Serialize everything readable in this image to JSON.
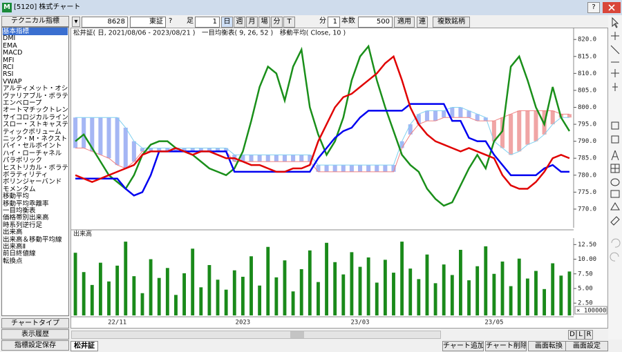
{
  "window": {
    "title": "[5120] 株式チャート",
    "help": "?"
  },
  "left_panel": {
    "button": "テクニカル指標",
    "items": [
      "基本指標",
      "DMI",
      "EMA",
      "MACD",
      "MFI",
      "RCI",
      "RSI",
      "VWAP",
      "アルティメット・オシレー",
      "ヴァリアブル・ボラティ",
      "エンベロープ",
      "オートマチックトレンドラ",
      "サイコロジカルライン",
      "スロー・ストキャスティ",
      "ティックボリューム",
      "ニック・M・ネクスト・ム",
      "バイ・セルポイント",
      "ハイ・ローチャネル",
      "パラボリック",
      "ヒストリカル・ボラティリ",
      "ボラティリティ",
      "ボリンジャーバンド",
      "モメンタム",
      "移動平均",
      "移動平均乖離率",
      "一目均衡表",
      "価格帯別出来高",
      "時系列逆行足",
      "出来高",
      "出来高＆移動平均線",
      "出来高Ⅱ",
      "前日終値線",
      "転換点"
    ],
    "bottom_buttons": [
      "チャートタイプ",
      "表示履歴",
      "指標設定保存"
    ]
  },
  "toolbar": {
    "code": "8628",
    "market": "東証",
    "help": "?",
    "bar_label": "足",
    "bar_count": "1",
    "periods": [
      "日",
      "週",
      "月",
      "場",
      "分",
      "T"
    ],
    "minute_label": "分",
    "minute_value": "1",
    "count_label": "本数",
    "count_value": "500",
    "apply": "適用",
    "link": "連",
    "multi": "複数銘柄"
  },
  "chart_data": [
    {
      "type": "line",
      "title": "松井証( 日, 2021/08/06 - 2023/08/21 )　一目均衡表( 9, 26, 52 )　移動平均( Close, 10 )",
      "ylim": [
        764.5,
        823.5
      ],
      "yticks": [
        {
          "value": 770,
          "label": "770.0"
        },
        {
          "value": 775,
          "label": "775.0"
        },
        {
          "value": 780,
          "label": "780.0"
        },
        {
          "value": 785,
          "label": "785.0"
        },
        {
          "value": 790,
          "label": "790.0"
        },
        {
          "value": 795,
          "label": "795.0"
        },
        {
          "value": 800,
          "label": "800.0"
        },
        {
          "value": 805,
          "label": "805.0"
        },
        {
          "value": 810,
          "label": "810.0"
        },
        {
          "value": 815,
          "label": "815.0"
        },
        {
          "value": 820,
          "label": "820.0"
        }
      ],
      "cloud": {
        "colors": [
          "#3a5ee8",
          "#e03a3a"
        ]
      },
      "series": [
        {
          "color": "#7fd0f0",
          "width": 1,
          "values": [
            797,
            797,
            797,
            797,
            797,
            797,
            794,
            790,
            788,
            788,
            788,
            788,
            788,
            788,
            788,
            788,
            788,
            788,
            788,
            786,
            786,
            786,
            786,
            786,
            786,
            786,
            786,
            786,
            786,
            783,
            783,
            783,
            783,
            783,
            783,
            783,
            783,
            783,
            783,
            790,
            795,
            798,
            799,
            799,
            799,
            800,
            800,
            799,
            798,
            797,
            790,
            788,
            786,
            787,
            789,
            790,
            792,
            795,
            797,
            797
          ]
        },
        {
          "color": "#f08080",
          "width": 1,
          "values": [
            788,
            788,
            787,
            786,
            785,
            783,
            782,
            784,
            787,
            787,
            787,
            787,
            787,
            787,
            787,
            787,
            787,
            787,
            787,
            784,
            784,
            784,
            784,
            784,
            784,
            784,
            784,
            784,
            784,
            781,
            781,
            781,
            781,
            781,
            781,
            781,
            781,
            781,
            781,
            788,
            792,
            795,
            796,
            796,
            797,
            797,
            797,
            797,
            796,
            796,
            796,
            797,
            798,
            799,
            799,
            799,
            799,
            799,
            798,
            798
          ]
        },
        {
          "color": "#1a8f1a",
          "width": 2.5,
          "values": [
            790,
            792,
            788,
            784,
            780,
            778,
            776,
            780,
            786,
            789,
            790,
            790,
            788,
            787,
            786,
            784,
            782,
            781,
            780,
            782,
            787,
            796,
            806,
            812,
            810,
            802,
            812,
            817,
            800,
            792,
            786,
            790,
            797,
            808,
            815,
            818,
            808,
            800,
            793,
            786,
            783,
            781,
            776,
            773,
            771,
            772,
            777,
            782,
            786,
            782,
            790,
            793,
            812,
            815,
            808,
            800,
            795,
            806,
            797,
            793
          ]
        },
        {
          "color": "#0000f0",
          "width": 2.5,
          "values": [
            779,
            779,
            779,
            779,
            779,
            779,
            776,
            774,
            775,
            780,
            787,
            787,
            787,
            787,
            787,
            787,
            787,
            787,
            787,
            781,
            781,
            781,
            781,
            781,
            781,
            781,
            781,
            781,
            781,
            785,
            788,
            791,
            793,
            794,
            797,
            799,
            799,
            799,
            799,
            799,
            801,
            801,
            801,
            801,
            801,
            796,
            796,
            791,
            790,
            790,
            786,
            783,
            780,
            780,
            780,
            780,
            782,
            783,
            781,
            781
          ]
        },
        {
          "color": "#e00000",
          "width": 2.5,
          "values": [
            780,
            779,
            778,
            779,
            780,
            781,
            782,
            783,
            786,
            787,
            787,
            787,
            788,
            787,
            786,
            787,
            787,
            786,
            785,
            785,
            784,
            783,
            783,
            782,
            781,
            781,
            782,
            782,
            783,
            790,
            795,
            800,
            803,
            804,
            806,
            808,
            810,
            813,
            815,
            808,
            800,
            795,
            792,
            790,
            789,
            788,
            787,
            788,
            787,
            786,
            785,
            780,
            777,
            776,
            776,
            778,
            781,
            785,
            786,
            785
          ]
        }
      ]
    },
    {
      "type": "bar",
      "title": "出来高",
      "unit_label": "× 100000",
      "color": "#1a8a1a",
      "categories": [
        null,
        null,
        null,
        null,
        null,
        "22/11",
        null,
        null,
        null,
        null,
        null,
        null,
        null,
        null,
        null,
        null,
        null,
        null,
        null,
        null,
        "2023",
        null,
        null,
        null,
        null,
        null,
        null,
        null,
        null,
        null,
        null,
        null,
        null,
        null,
        "23/03",
        null,
        null,
        null,
        null,
        null,
        null,
        null,
        null,
        null,
        null,
        null,
        null,
        null,
        null,
        null,
        "23/05",
        null,
        null,
        null,
        null,
        null,
        null,
        null,
        null,
        null
      ],
      "values": [
        11.1,
        7.8,
        5.6,
        9.4,
        6.2,
        8.9,
        13.0,
        7.1,
        4.2,
        10.0,
        6.8,
        8.5,
        3.9,
        7.6,
        11.8,
        5.2,
        9.0,
        6.5,
        4.8,
        8.1,
        7.0,
        10.5,
        5.5,
        12.1,
        6.9,
        9.8,
        4.5,
        8.3,
        11.5,
        6.1,
        12.8,
        9.5,
        7.4,
        11.2,
        8.7,
        10.3,
        6.0,
        9.9,
        7.7,
        13.0,
        8.4,
        6.6,
        10.8,
        5.9,
        9.1,
        7.3,
        11.6,
        6.4,
        8.8,
        12.2,
        7.5,
        9.6,
        5.4,
        10.1,
        6.7,
        8.0,
        4.9,
        9.3,
        7.2,
        7.9
      ],
      "ylim": [
        0.4,
        13.6
      ],
      "yticks": [
        {
          "value": 2.5,
          "label": "2.50"
        },
        {
          "value": 5,
          "label": "5.00"
        },
        {
          "value": 7.5,
          "label": "7.50"
        },
        {
          "value": 10,
          "label": "10.00"
        },
        {
          "value": 12.5,
          "label": "12.50"
        }
      ]
    }
  ],
  "footer": {
    "tab": "松井証",
    "scroll_buttons": [
      "D",
      "L",
      "R"
    ],
    "buttons": [
      "チャート追加",
      "チャート削除",
      "画面転換",
      "画面設定"
    ]
  }
}
